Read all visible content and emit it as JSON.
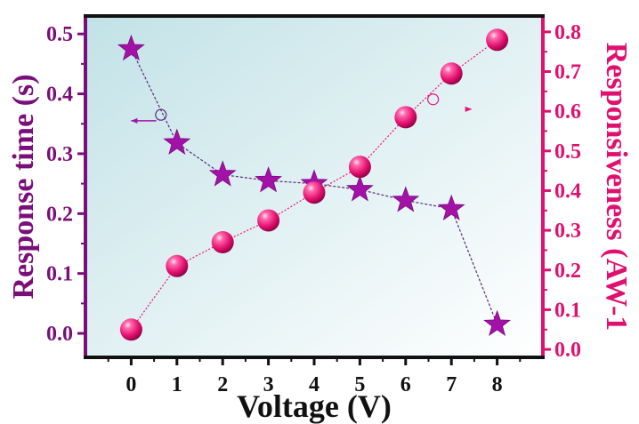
{
  "chart_data": {
    "type": "line",
    "xlabel": "Voltage (V)",
    "ylabel": "Response time (s)",
    "y2label": "Responsiveness (AW-1",
    "x": [
      0,
      1,
      2,
      3,
      4,
      5,
      6,
      7,
      8
    ],
    "xlim": [
      -1.0,
      9.0
    ],
    "ylim": [
      -0.04,
      0.53
    ],
    "y2lim": [
      -0.02,
      0.84
    ],
    "x_ticks": [
      "0",
      "1",
      "2",
      "3",
      "4",
      "5",
      "6",
      "7",
      "8"
    ],
    "y_ticks": [
      "0.0",
      "0.1",
      "0.2",
      "0.3",
      "0.4",
      "0.5"
    ],
    "y2_ticks": [
      "0.0",
      "0.1",
      "0.2",
      "0.3",
      "0.4",
      "0.5",
      "0.6",
      "0.7",
      "0.8"
    ],
    "series": [
      {
        "axis": "left",
        "marker": "star",
        "color": "#a312a6",
        "values": [
          0.475,
          0.318,
          0.265,
          0.255,
          0.25,
          0.24,
          0.222,
          0.208,
          0.015
        ]
      },
      {
        "axis": "right",
        "marker": "sphere",
        "color": "#e8147a",
        "values": [
          0.05,
          0.21,
          0.27,
          0.325,
          0.395,
          0.46,
          0.585,
          0.695,
          0.78
        ]
      }
    ],
    "grid": false,
    "background": "gradient #c4e3e8 to #ffffff",
    "axis_colors": {
      "left": "#7a0f7a",
      "right": "#e0106e",
      "x": "#111111"
    }
  }
}
